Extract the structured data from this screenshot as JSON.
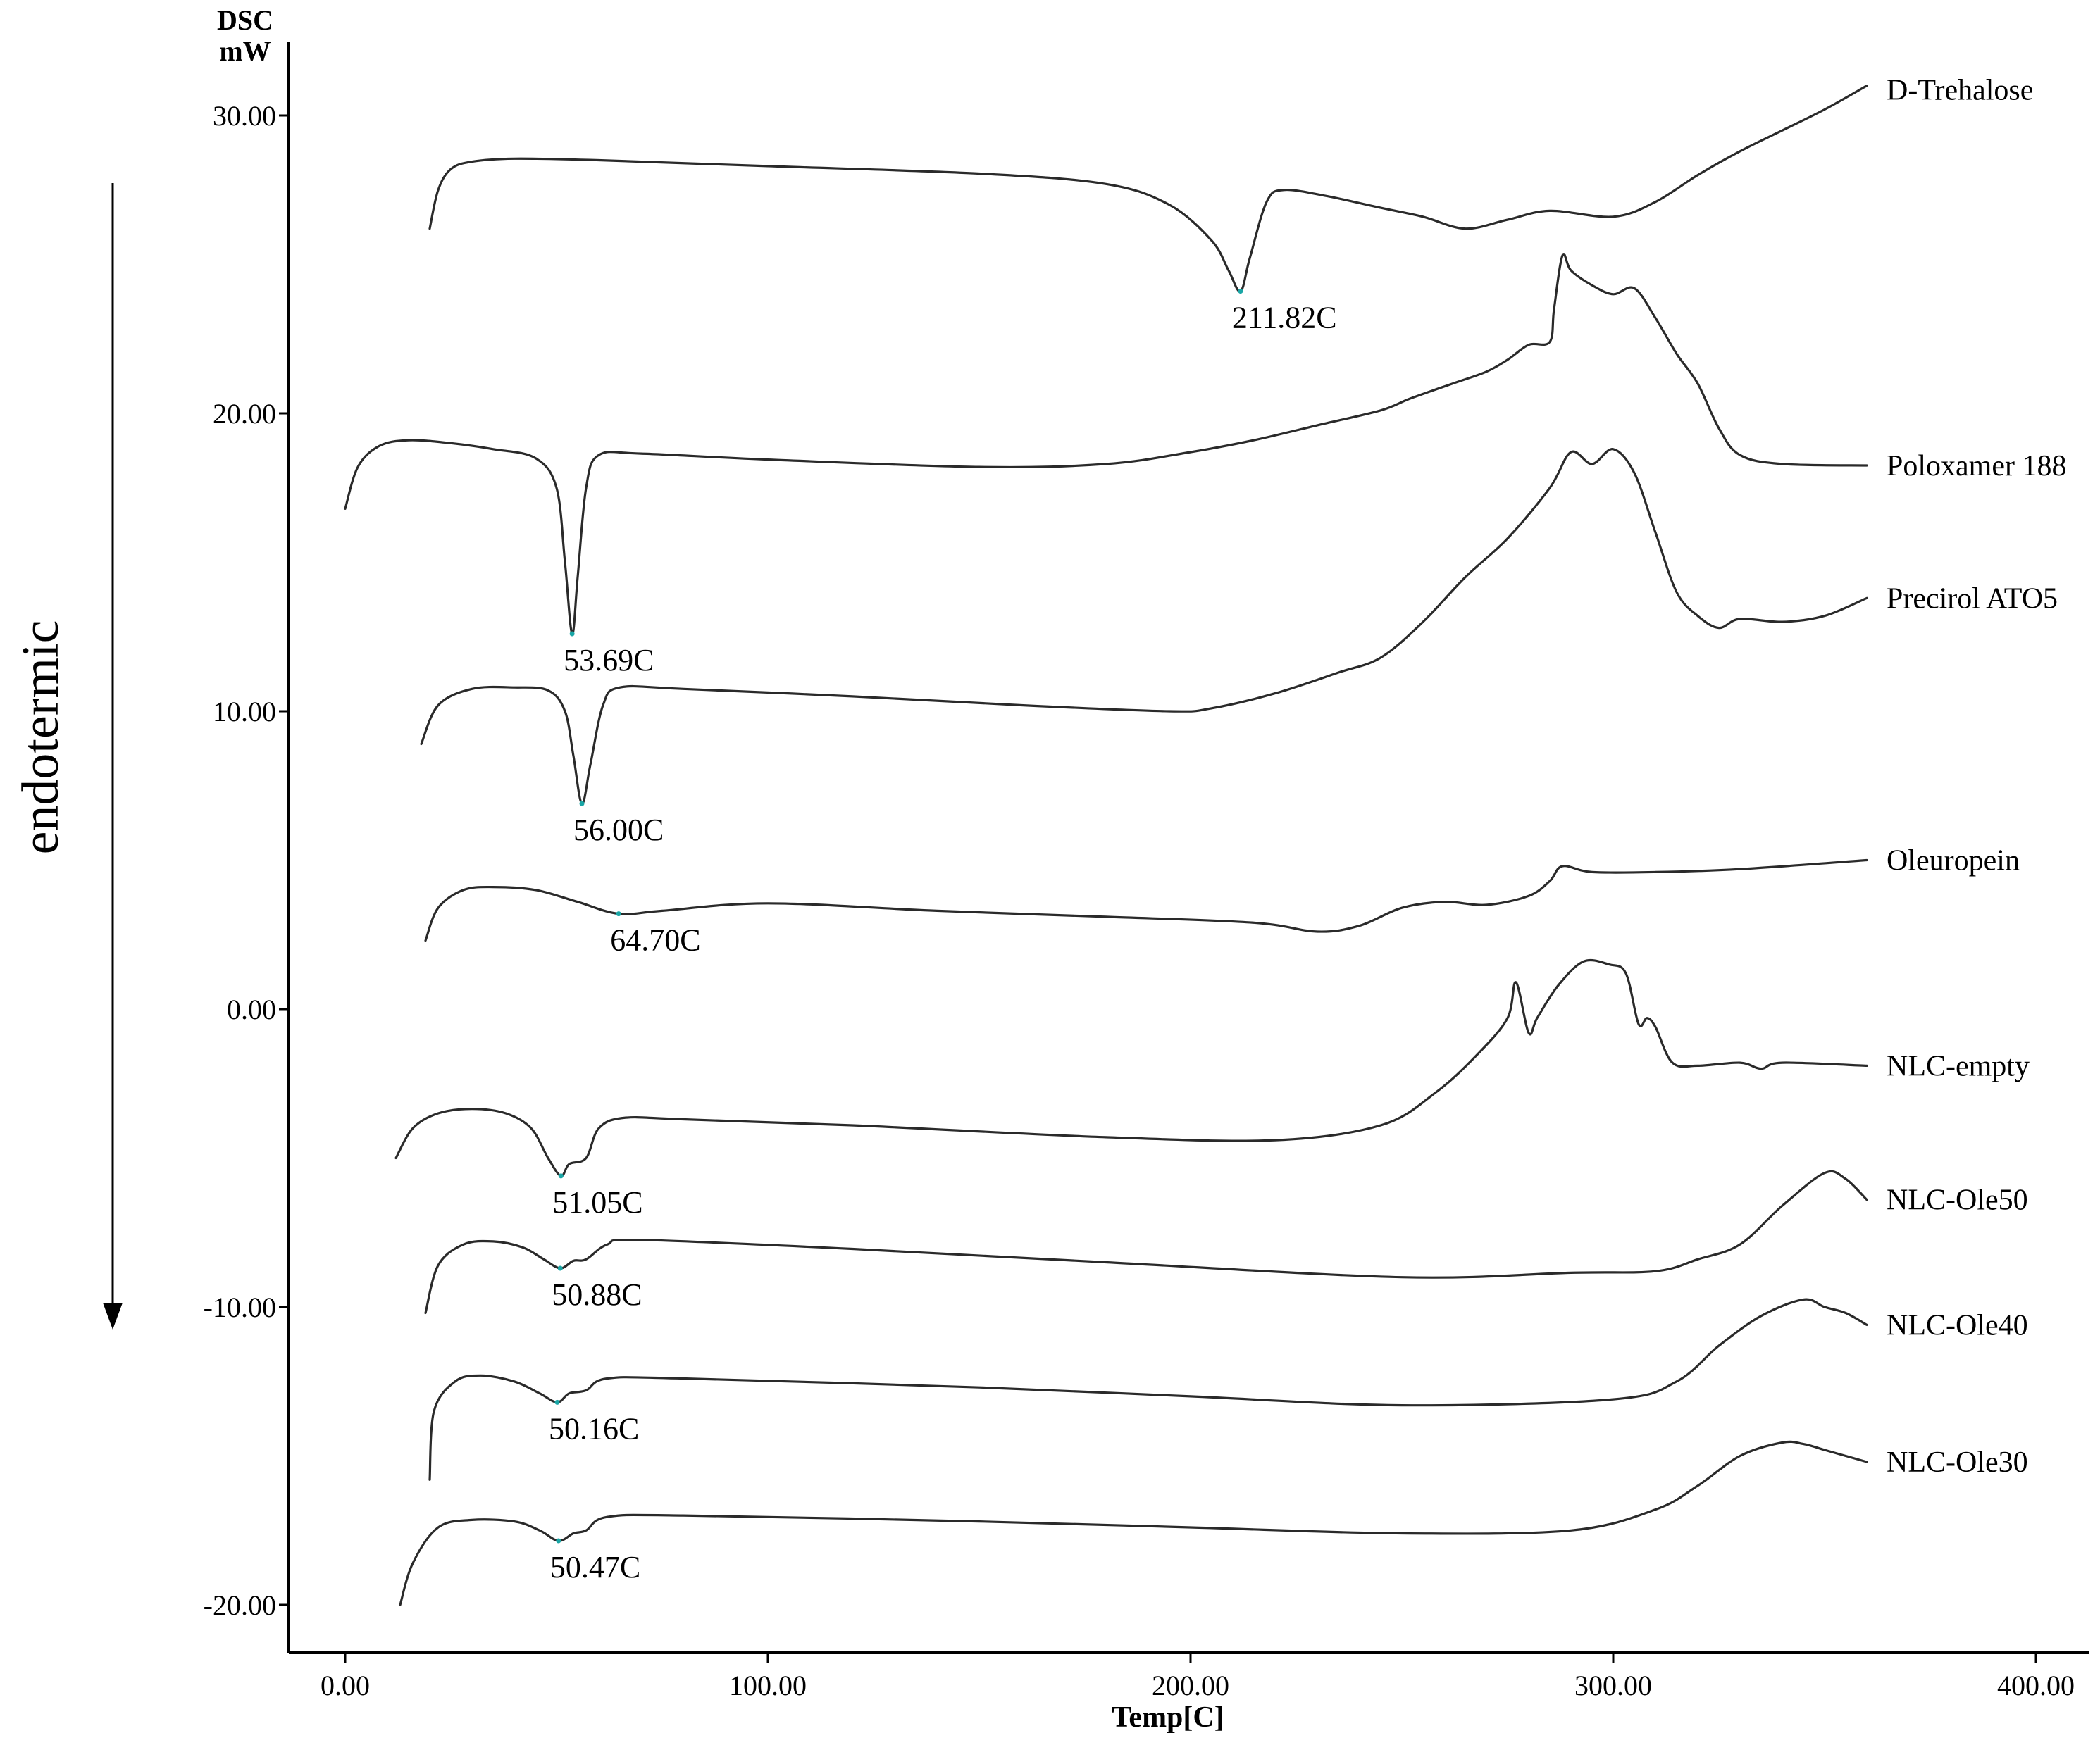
{
  "chart_data": {
    "type": "line",
    "ylabel_top": "DSC",
    "ylabel_unit": "mW",
    "xlabel": "Temp[C]",
    "side_label": "endotermic",
    "xlim": [
      -13.5,
      413.5
    ],
    "ylim": [
      -21.6,
      32.0
    ],
    "x_ticks": [
      "0.00",
      "100.00",
      "200.00",
      "300.00",
      "400.00"
    ],
    "x_tick_values": [
      0,
      100,
      200,
      300,
      400
    ],
    "y_ticks": [
      "30.00",
      "20.00",
      "10.00",
      "0.00",
      "-10.00",
      "-20.00"
    ],
    "y_tick_values": [
      30,
      20,
      10,
      0,
      -10,
      -20
    ],
    "series": [
      {
        "name": "D-Trehalose",
        "points": [
          [
            20,
            26.2
          ],
          [
            22,
            27.5
          ],
          [
            25,
            28.2
          ],
          [
            30,
            28.45
          ],
          [
            40,
            28.55
          ],
          [
            60,
            28.5
          ],
          [
            100,
            28.3
          ],
          [
            150,
            28.05
          ],
          [
            180,
            27.7
          ],
          [
            195,
            27.0
          ],
          [
            205,
            25.8
          ],
          [
            209,
            24.8
          ],
          [
            211.82,
            24.1
          ],
          [
            214,
            25.2
          ],
          [
            218,
            27.1
          ],
          [
            222,
            27.5
          ],
          [
            232,
            27.3
          ],
          [
            245,
            26.9
          ],
          [
            255,
            26.6
          ],
          [
            265,
            26.2
          ],
          [
            275,
            26.5
          ],
          [
            285,
            26.8
          ],
          [
            300,
            26.6
          ],
          [
            310,
            27.1
          ],
          [
            320,
            28.0
          ],
          [
            330,
            28.8
          ],
          [
            340,
            29.5
          ],
          [
            350,
            30.2
          ],
          [
            360,
            31.0
          ]
        ],
        "peak": {
          "x": 211.82,
          "label": "211.82C"
        }
      },
      {
        "name": "Poloxamer 188",
        "points": [
          [
            0,
            16.8
          ],
          [
            3,
            18.2
          ],
          [
            8,
            18.9
          ],
          [
            15,
            19.1
          ],
          [
            25,
            19.0
          ],
          [
            35,
            18.8
          ],
          [
            45,
            18.5
          ],
          [
            50,
            17.5
          ],
          [
            52,
            15.0
          ],
          [
            53.69,
            12.6
          ],
          [
            55,
            14.5
          ],
          [
            57,
            17.5
          ],
          [
            60,
            18.6
          ],
          [
            70,
            18.65
          ],
          [
            100,
            18.45
          ],
          [
            150,
            18.2
          ],
          [
            180,
            18.3
          ],
          [
            200,
            18.7
          ],
          [
            215,
            19.1
          ],
          [
            230,
            19.6
          ],
          [
            245,
            20.1
          ],
          [
            252,
            20.5
          ],
          [
            262,
            21.0
          ],
          [
            270,
            21.4
          ],
          [
            275,
            21.8
          ],
          [
            280,
            22.3
          ],
          [
            285,
            22.4
          ],
          [
            286,
            23.5
          ],
          [
            288,
            25.3
          ],
          [
            290,
            24.8
          ],
          [
            295,
            24.3
          ],
          [
            300,
            24.0
          ],
          [
            305,
            24.2
          ],
          [
            310,
            23.2
          ],
          [
            315,
            22.0
          ],
          [
            320,
            21.0
          ],
          [
            325,
            19.5
          ],
          [
            330,
            18.6
          ],
          [
            340,
            18.3
          ],
          [
            360,
            18.25
          ]
        ],
        "peak": {
          "x": 53.69,
          "label": "53.69C"
        }
      },
      {
        "name": "Precirol ATO5",
        "points": [
          [
            18,
            8.9
          ],
          [
            22,
            10.2
          ],
          [
            30,
            10.75
          ],
          [
            40,
            10.8
          ],
          [
            48,
            10.7
          ],
          [
            52,
            10.0
          ],
          [
            54,
            8.5
          ],
          [
            56,
            6.9
          ],
          [
            58,
            8.2
          ],
          [
            61,
            10.2
          ],
          [
            65,
            10.8
          ],
          [
            80,
            10.75
          ],
          [
            120,
            10.5
          ],
          [
            160,
            10.2
          ],
          [
            195,
            10.0
          ],
          [
            205,
            10.1
          ],
          [
            220,
            10.6
          ],
          [
            235,
            11.3
          ],
          [
            245,
            11.8
          ],
          [
            255,
            13.0
          ],
          [
            265,
            14.5
          ],
          [
            275,
            15.8
          ],
          [
            285,
            17.5
          ],
          [
            290,
            18.7
          ],
          [
            295,
            18.3
          ],
          [
            300,
            18.8
          ],
          [
            305,
            18.0
          ],
          [
            310,
            16.0
          ],
          [
            315,
            14.0
          ],
          [
            320,
            13.2
          ],
          [
            325,
            12.8
          ],
          [
            330,
            13.1
          ],
          [
            340,
            13.0
          ],
          [
            350,
            13.2
          ],
          [
            360,
            13.8
          ]
        ],
        "peak": {
          "x": 56.0,
          "label": "56.00C"
        }
      },
      {
        "name": "Oleuropein",
        "points": [
          [
            19,
            2.3
          ],
          [
            22,
            3.4
          ],
          [
            28,
            4.0
          ],
          [
            35,
            4.1
          ],
          [
            45,
            4.0
          ],
          [
            55,
            3.6
          ],
          [
            64.7,
            3.2
          ],
          [
            75,
            3.3
          ],
          [
            100,
            3.55
          ],
          [
            140,
            3.3
          ],
          [
            180,
            3.1
          ],
          [
            215,
            2.9
          ],
          [
            230,
            2.6
          ],
          [
            240,
            2.8
          ],
          [
            250,
            3.4
          ],
          [
            260,
            3.6
          ],
          [
            270,
            3.5
          ],
          [
            280,
            3.8
          ],
          [
            285,
            4.3
          ],
          [
            288,
            4.8
          ],
          [
            295,
            4.6
          ],
          [
            310,
            4.6
          ],
          [
            330,
            4.7
          ],
          [
            360,
            5.0
          ]
        ],
        "peak": {
          "x": 64.7,
          "label": "64.70C"
        }
      },
      {
        "name": "NLC-empty",
        "points": [
          [
            12,
            -5.0
          ],
          [
            16,
            -4.0
          ],
          [
            22,
            -3.5
          ],
          [
            30,
            -3.35
          ],
          [
            38,
            -3.5
          ],
          [
            44,
            -4.0
          ],
          [
            48,
            -5.0
          ],
          [
            51.05,
            -5.6
          ],
          [
            53,
            -5.2
          ],
          [
            57,
            -5.0
          ],
          [
            60,
            -4.0
          ],
          [
            66,
            -3.65
          ],
          [
            80,
            -3.7
          ],
          [
            120,
            -3.9
          ],
          [
            180,
            -4.3
          ],
          [
            220,
            -4.4
          ],
          [
            245,
            -3.9
          ],
          [
            258,
            -2.8
          ],
          [
            268,
            -1.5
          ],
          [
            275,
            -0.3
          ],
          [
            277,
            0.9
          ],
          [
            280,
            -0.8
          ],
          [
            282,
            -0.3
          ],
          [
            287,
            0.8
          ],
          [
            293,
            1.6
          ],
          [
            299,
            1.5
          ],
          [
            303,
            1.2
          ],
          [
            306,
            -0.5
          ],
          [
            308,
            -0.3
          ],
          [
            310,
            -0.6
          ],
          [
            314,
            -1.8
          ],
          [
            320,
            -1.9
          ],
          [
            330,
            -1.8
          ],
          [
            335,
            -2.0
          ],
          [
            340,
            -1.8
          ],
          [
            360,
            -1.9
          ]
        ],
        "peak": {
          "x": 51.05,
          "label": "51.05C"
        }
      },
      {
        "name": "NLC-Ole50",
        "points": [
          [
            19,
            -10.2
          ],
          [
            22,
            -8.6
          ],
          [
            28,
            -7.9
          ],
          [
            35,
            -7.8
          ],
          [
            42,
            -8.0
          ],
          [
            47,
            -8.4
          ],
          [
            50.88,
            -8.7
          ],
          [
            54,
            -8.45
          ],
          [
            57,
            -8.4
          ],
          [
            62,
            -7.9
          ],
          [
            70,
            -7.75
          ],
          [
            120,
            -8.05
          ],
          [
            180,
            -8.5
          ],
          [
            250,
            -9.0
          ],
          [
            290,
            -8.85
          ],
          [
            310,
            -8.8
          ],
          [
            320,
            -8.4
          ],
          [
            330,
            -7.9
          ],
          [
            340,
            -6.6
          ],
          [
            350,
            -5.5
          ],
          [
            355,
            -5.7
          ],
          [
            360,
            -6.4
          ]
        ],
        "peak": {
          "x": 50.88,
          "label": "50.88C"
        }
      },
      {
        "name": "NLC-Ole40",
        "points": [
          [
            20,
            -15.8
          ],
          [
            21,
            -13.5
          ],
          [
            26,
            -12.5
          ],
          [
            32,
            -12.3
          ],
          [
            40,
            -12.5
          ],
          [
            46,
            -12.9
          ],
          [
            50.16,
            -13.2
          ],
          [
            53,
            -12.9
          ],
          [
            57,
            -12.8
          ],
          [
            62,
            -12.4
          ],
          [
            80,
            -12.4
          ],
          [
            150,
            -12.7
          ],
          [
            200,
            -13.0
          ],
          [
            250,
            -13.3
          ],
          [
            300,
            -13.1
          ],
          [
            315,
            -12.5
          ],
          [
            325,
            -11.3
          ],
          [
            335,
            -10.3
          ],
          [
            345,
            -9.75
          ],
          [
            350,
            -10.0
          ],
          [
            355,
            -10.2
          ],
          [
            360,
            -10.6
          ]
        ],
        "peak": {
          "x": 50.16,
          "label": "50.16C"
        }
      },
      {
        "name": "NLC-Ole30",
        "points": [
          [
            13,
            -20.0
          ],
          [
            16,
            -18.6
          ],
          [
            22,
            -17.4
          ],
          [
            30,
            -17.15
          ],
          [
            40,
            -17.2
          ],
          [
            46,
            -17.5
          ],
          [
            50.47,
            -17.85
          ],
          [
            54,
            -17.6
          ],
          [
            57,
            -17.5
          ],
          [
            62,
            -17.05
          ],
          [
            80,
            -17.0
          ],
          [
            150,
            -17.2
          ],
          [
            200,
            -17.4
          ],
          [
            250,
            -17.6
          ],
          [
            290,
            -17.5
          ],
          [
            310,
            -16.8
          ],
          [
            320,
            -16.0
          ],
          [
            330,
            -15.0
          ],
          [
            340,
            -14.55
          ],
          [
            345,
            -14.6
          ],
          [
            350,
            -14.8
          ],
          [
            355,
            -15.0
          ],
          [
            360,
            -15.2
          ]
        ],
        "peak": {
          "x": 50.47,
          "label": "50.47C"
        }
      }
    ]
  }
}
